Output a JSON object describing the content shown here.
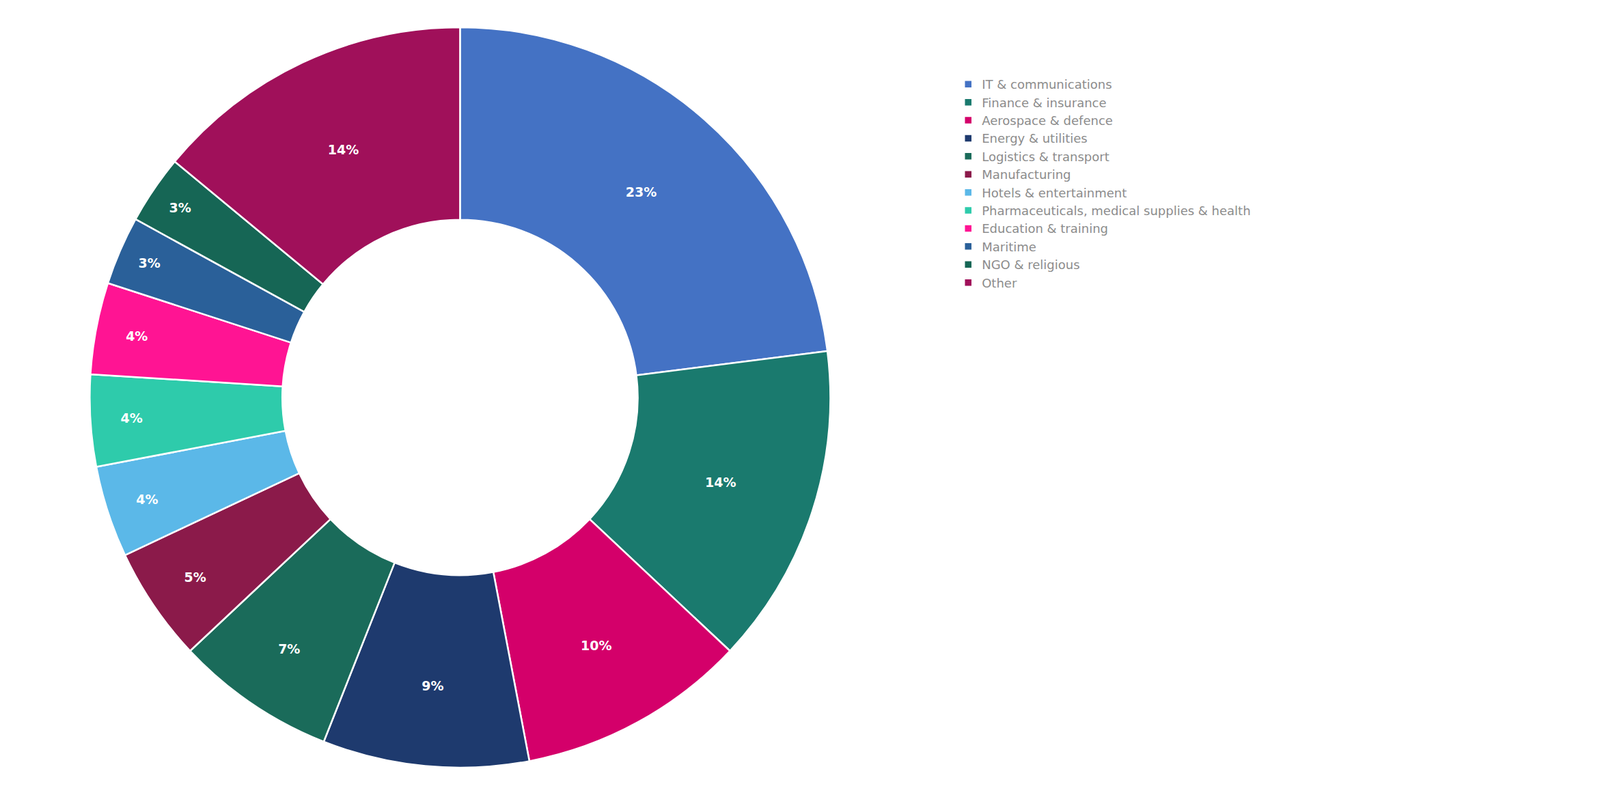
{
  "chart_data": {
    "type": "pie",
    "categories": [
      "IT & communications",
      "Finance & insurance",
      "Aerospace & defence",
      "Energy & utilities",
      "Logistics & transport",
      "Manufacturing",
      "Hotels & entertainment",
      "Pharmaceuticals, medical supplies & health",
      "Education & training",
      "Maritime",
      "NGO & religious",
      "Other"
    ],
    "values": [
      23,
      14,
      10,
      9,
      7,
      5,
      4,
      4,
      4,
      3,
      3,
      14
    ],
    "value_labels": [
      "23%",
      "14%",
      "10%",
      "9%",
      "7%",
      "5%",
      "4%",
      "4%",
      "4%",
      "3%",
      "3%",
      "14%"
    ],
    "colors": [
      "#4472C4",
      "#1A7A6E",
      "#D4006A",
      "#1E3A6E",
      "#1A6B5A",
      "#8B1A4A",
      "#5BB8E8",
      "#2ECBAB",
      "#FF1493",
      "#2A6099",
      "#166655",
      "#A0105A"
    ],
    "data_labels": true,
    "legend": "right"
  }
}
